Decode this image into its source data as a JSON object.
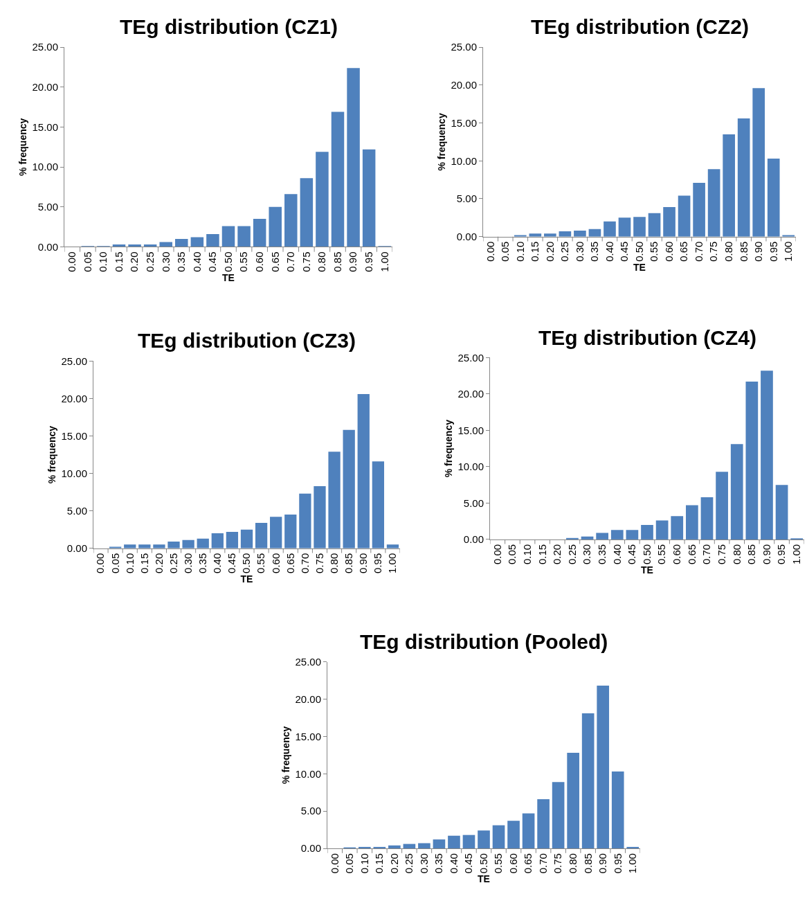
{
  "chart_data": [
    {
      "type": "bar",
      "title": "TEg distribution (CZ1)",
      "xlabel": "TE",
      "ylabel": "% frequency",
      "color": "#4f81bd",
      "categories": [
        "0.00",
        "0.05",
        "0.10",
        "0.15",
        "0.20",
        "0.25",
        "0.30",
        "0.35",
        "0.40",
        "0.45",
        "0.50",
        "0.55",
        "0.60",
        "0.65",
        "0.70",
        "0.75",
        "0.80",
        "0.85",
        "0.90",
        "0.95",
        "1.00"
      ],
      "values": [
        0,
        0.1,
        0.1,
        0.3,
        0.3,
        0.3,
        0.6,
        1.0,
        1.2,
        1.6,
        2.6,
        2.6,
        3.5,
        5.0,
        6.6,
        8.6,
        11.9,
        16.9,
        22.4,
        12.2,
        0.1
      ],
      "ylim": [
        0,
        25
      ],
      "yticks": [
        {
          "value": 0,
          "label": "0.00"
        },
        {
          "value": 5,
          "label": "5.00"
        },
        {
          "value": 10,
          "label": "10.00"
        },
        {
          "value": 15,
          "label": "15.00"
        },
        {
          "value": 20,
          "label": "20.00"
        },
        {
          "value": 25,
          "label": "25.00"
        }
      ]
    },
    {
      "type": "bar",
      "title": "TEg distribution (CZ2)",
      "xlabel": "TE",
      "ylabel": "% frequency",
      "color": "#4f81bd",
      "categories": [
        "0.00",
        "0.05",
        "0.10",
        "0.15",
        "0.20",
        "0.25",
        "0.30",
        "0.35",
        "0.40",
        "0.45",
        "0.50",
        "0.55",
        "0.60",
        "0.65",
        "0.70",
        "0.75",
        "0.80",
        "0.85",
        "0.90",
        "0.95",
        "1.00"
      ],
      "values": [
        0,
        0,
        0.2,
        0.4,
        0.4,
        0.7,
        0.8,
        1.0,
        2.0,
        2.5,
        2.6,
        3.1,
        3.9,
        5.4,
        7.1,
        8.9,
        13.5,
        15.6,
        19.6,
        10.3,
        0.2
      ],
      "ylim": [
        0,
        25
      ],
      "yticks": [
        {
          "value": 0,
          "label": "0.00"
        },
        {
          "value": 5,
          "label": "5.00"
        },
        {
          "value": 10,
          "label": "10.00"
        },
        {
          "value": 15,
          "label": "15.00"
        },
        {
          "value": 20,
          "label": "20.00"
        },
        {
          "value": 25,
          "label": "25.00"
        }
      ]
    },
    {
      "type": "bar",
      "title": "TEg distribution (CZ3)",
      "xlabel": "TE",
      "ylabel": "% frequency",
      "color": "#4f81bd",
      "categories": [
        "0.00",
        "0.05",
        "0.10",
        "0.15",
        "0.20",
        "0.25",
        "0.30",
        "0.35",
        "0.40",
        "0.45",
        "0.50",
        "0.55",
        "0.60",
        "0.65",
        "0.70",
        "0.75",
        "0.80",
        "0.85",
        "0.90",
        "0.95",
        "1.00"
      ],
      "values": [
        0,
        0.2,
        0.5,
        0.5,
        0.5,
        0.9,
        1.1,
        1.3,
        2.0,
        2.2,
        2.5,
        3.4,
        4.2,
        4.5,
        7.3,
        8.3,
        12.9,
        15.8,
        20.6,
        11.6,
        0.5
      ],
      "ylim": [
        0,
        25
      ],
      "yticks": [
        {
          "value": 0,
          "label": "0.00"
        },
        {
          "value": 5,
          "label": "5.00"
        },
        {
          "value": 10,
          "label": "10.00"
        },
        {
          "value": 15,
          "label": "15.00"
        },
        {
          "value": 20,
          "label": "20.00"
        },
        {
          "value": 25,
          "label": "25.00"
        }
      ]
    },
    {
      "type": "bar",
      "title": "TEg distribution (CZ4)",
      "xlabel": "TE",
      "ylabel": "% frequency",
      "color": "#4f81bd",
      "categories": [
        "0.00",
        "0.05",
        "0.10",
        "0.15",
        "0.20",
        "0.25",
        "0.30",
        "0.35",
        "0.40",
        "0.45",
        "0.50",
        "0.55",
        "0.60",
        "0.65",
        "0.70",
        "0.75",
        "0.80",
        "0.85",
        "0.90",
        "0.95",
        "1.00"
      ],
      "values": [
        0,
        0,
        0,
        0,
        0,
        0.2,
        0.4,
        0.9,
        1.3,
        1.3,
        2.0,
        2.6,
        3.2,
        4.7,
        5.8,
        9.3,
        13.1,
        21.7,
        23.2,
        7.5,
        0.1
      ],
      "ylim": [
        0,
        25
      ],
      "yticks": [
        {
          "value": 0,
          "label": "0.00"
        },
        {
          "value": 5,
          "label": "5.00"
        },
        {
          "value": 10,
          "label": "10.00"
        },
        {
          "value": 15,
          "label": "15.00"
        },
        {
          "value": 20,
          "label": "20.00"
        },
        {
          "value": 25,
          "label": "25.00"
        }
      ]
    },
    {
      "type": "bar",
      "title": "TEg distribution (Pooled)",
      "xlabel": "TE",
      "ylabel": "% frequency",
      "color": "#4f81bd",
      "categories": [
        "0.00",
        "0.05",
        "0.10",
        "0.15",
        "0.20",
        "0.25",
        "0.30",
        "0.35",
        "0.40",
        "0.45",
        "0.50",
        "0.55",
        "0.60",
        "0.65",
        "0.70",
        "0.75",
        "0.80",
        "0.85",
        "0.90",
        "0.95",
        "1.00"
      ],
      "values": [
        0,
        0.1,
        0.2,
        0.2,
        0.4,
        0.6,
        0.7,
        1.2,
        1.7,
        1.8,
        2.4,
        3.1,
        3.7,
        4.7,
        6.6,
        8.9,
        12.8,
        18.1,
        21.8,
        10.3,
        0.2
      ],
      "ylim": [
        0,
        25
      ],
      "yticks": [
        {
          "value": 0,
          "label": "0.00"
        },
        {
          "value": 5,
          "label": "5.00"
        },
        {
          "value": 10,
          "label": "10.00"
        },
        {
          "value": 15,
          "label": "15.00"
        },
        {
          "value": 20,
          "label": "20.00"
        },
        {
          "value": 25,
          "label": "25.00"
        }
      ]
    }
  ]
}
